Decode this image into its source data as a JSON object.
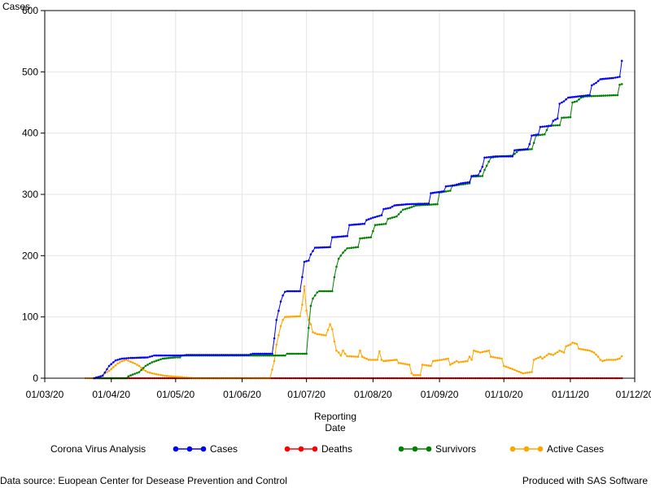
{
  "chart_data": {
    "type": "line",
    "title": "",
    "ylabel": "Cases",
    "xlabel_lines": [
      "Reporting",
      "Date"
    ],
    "ylim": [
      0,
      600
    ],
    "yticks": [
      0,
      100,
      200,
      300,
      400,
      500,
      600
    ],
    "xlim": [
      "2020-03-01",
      "2020-12-01"
    ],
    "xticks": [
      {
        "date": "2020-03-01",
        "label": "01/03/20"
      },
      {
        "date": "2020-04-01",
        "label": "01/04/20"
      },
      {
        "date": "2020-05-01",
        "label": "01/05/20"
      },
      {
        "date": "2020-06-01",
        "label": "01/06/20"
      },
      {
        "date": "2020-07-01",
        "label": "01/07/20"
      },
      {
        "date": "2020-08-01",
        "label": "01/08/20"
      },
      {
        "date": "2020-09-01",
        "label": "01/09/20"
      },
      {
        "date": "2020-10-01",
        "label": "01/10/20"
      },
      {
        "date": "2020-11-01",
        "label": "01/11/20"
      },
      {
        "date": "2020-12-01",
        "label": "01/12/20"
      }
    ],
    "grid": true,
    "legend_placement": "bottom",
    "legend_title": "Corona Virus Analysis",
    "series": [
      {
        "name": "Cases",
        "color": "#0000ff",
        "points": [
          [
            "2020-03-24",
            0
          ],
          [
            "2020-03-28",
            4
          ],
          [
            "2020-03-31",
            20
          ],
          [
            "2020-04-03",
            29
          ],
          [
            "2020-04-06",
            32
          ],
          [
            "2020-04-10",
            33
          ],
          [
            "2020-04-18",
            34
          ],
          [
            "2020-04-21",
            37
          ],
          [
            "2020-05-04",
            37
          ],
          [
            "2020-05-06",
            38
          ],
          [
            "2020-06-04",
            38
          ],
          [
            "2020-06-06",
            40
          ],
          [
            "2020-06-15",
            40
          ],
          [
            "2020-06-16",
            65
          ],
          [
            "2020-06-17",
            95
          ],
          [
            "2020-06-18",
            110
          ],
          [
            "2020-06-19",
            125
          ],
          [
            "2020-06-20",
            135
          ],
          [
            "2020-06-21",
            141
          ],
          [
            "2020-06-22",
            142
          ],
          [
            "2020-06-28",
            142
          ],
          [
            "2020-06-29",
            165
          ],
          [
            "2020-06-30",
            190
          ],
          [
            "2020-07-02",
            192
          ],
          [
            "2020-07-03",
            202
          ],
          [
            "2020-07-05",
            213
          ],
          [
            "2020-07-12",
            214
          ],
          [
            "2020-07-13",
            230
          ],
          [
            "2020-07-20",
            232
          ],
          [
            "2020-07-21",
            250
          ],
          [
            "2020-07-28",
            252
          ],
          [
            "2020-07-29",
            258
          ],
          [
            "2020-08-01",
            262
          ],
          [
            "2020-08-05",
            266
          ],
          [
            "2020-08-06",
            276
          ],
          [
            "2020-08-09",
            278
          ],
          [
            "2020-08-11",
            282
          ],
          [
            "2020-08-17",
            284
          ],
          [
            "2020-08-27",
            285
          ],
          [
            "2020-08-28",
            302
          ],
          [
            "2020-09-03",
            305
          ],
          [
            "2020-09-04",
            313
          ],
          [
            "2020-09-08",
            315
          ],
          [
            "2020-09-11",
            318
          ],
          [
            "2020-09-15",
            320
          ],
          [
            "2020-09-16",
            330
          ],
          [
            "2020-09-19",
            331
          ],
          [
            "2020-09-21",
            345
          ],
          [
            "2020-09-22",
            360
          ],
          [
            "2020-09-27",
            362
          ],
          [
            "2020-10-05",
            362
          ],
          [
            "2020-10-06",
            372
          ],
          [
            "2020-10-12",
            374
          ],
          [
            "2020-10-13",
            382
          ],
          [
            "2020-10-14",
            396
          ],
          [
            "2020-10-17",
            398
          ],
          [
            "2020-10-18",
            410
          ],
          [
            "2020-10-23",
            412
          ],
          [
            "2020-10-24",
            420
          ],
          [
            "2020-10-26",
            424
          ],
          [
            "2020-10-27",
            448
          ],
          [
            "2020-10-29",
            452
          ],
          [
            "2020-10-31",
            458
          ],
          [
            "2020-11-10",
            462
          ],
          [
            "2020-11-11",
            478
          ],
          [
            "2020-11-13",
            482
          ],
          [
            "2020-11-15",
            488
          ],
          [
            "2020-11-21",
            490
          ],
          [
            "2020-11-24",
            492
          ],
          [
            "2020-11-25",
            518
          ]
        ]
      },
      {
        "name": "Deaths",
        "color": "#ff0000",
        "points": [
          [
            "2020-03-24",
            0
          ],
          [
            "2020-11-25",
            0
          ]
        ]
      },
      {
        "name": "Survivors",
        "color": "#008000",
        "points": [
          [
            "2020-03-24",
            0
          ],
          [
            "2020-04-08",
            0
          ],
          [
            "2020-04-09",
            3
          ],
          [
            "2020-04-11",
            6
          ],
          [
            "2020-04-14",
            10
          ],
          [
            "2020-04-17",
            20
          ],
          [
            "2020-04-20",
            26
          ],
          [
            "2020-04-25",
            32
          ],
          [
            "2020-05-01",
            34
          ],
          [
            "2020-05-03",
            34
          ],
          [
            "2020-05-04",
            37
          ],
          [
            "2020-06-21",
            37
          ],
          [
            "2020-06-22",
            40
          ],
          [
            "2020-07-01",
            40
          ],
          [
            "2020-07-02",
            82
          ],
          [
            "2020-07-03",
            118
          ],
          [
            "2020-07-04",
            130
          ],
          [
            "2020-07-06",
            140
          ],
          [
            "2020-07-07",
            142
          ],
          [
            "2020-07-13",
            142
          ],
          [
            "2020-07-14",
            165
          ],
          [
            "2020-07-15",
            182
          ],
          [
            "2020-07-16",
            195
          ],
          [
            "2020-07-18",
            205
          ],
          [
            "2020-07-20",
            212
          ],
          [
            "2020-07-25",
            214
          ],
          [
            "2020-07-26",
            228
          ],
          [
            "2020-07-31",
            230
          ],
          [
            "2020-08-02",
            250
          ],
          [
            "2020-08-07",
            252
          ],
          [
            "2020-08-08",
            260
          ],
          [
            "2020-08-12",
            264
          ],
          [
            "2020-08-15",
            275
          ],
          [
            "2020-08-18",
            278
          ],
          [
            "2020-08-21",
            282
          ],
          [
            "2020-08-31",
            284
          ],
          [
            "2020-09-01",
            303
          ],
          [
            "2020-09-06",
            306
          ],
          [
            "2020-09-07",
            314
          ],
          [
            "2020-09-11",
            316
          ],
          [
            "2020-09-15",
            318
          ],
          [
            "2020-09-16",
            329
          ],
          [
            "2020-09-21",
            330
          ],
          [
            "2020-09-22",
            340
          ],
          [
            "2020-09-25",
            360
          ],
          [
            "2020-09-29",
            362
          ],
          [
            "2020-10-05",
            363
          ],
          [
            "2020-10-08",
            372
          ],
          [
            "2020-10-14",
            374
          ],
          [
            "2020-10-15",
            384
          ],
          [
            "2020-10-16",
            396
          ],
          [
            "2020-10-20",
            398
          ],
          [
            "2020-10-21",
            405
          ],
          [
            "2020-10-22",
            412
          ],
          [
            "2020-10-27",
            413
          ],
          [
            "2020-10-28",
            425
          ],
          [
            "2020-11-01",
            426
          ],
          [
            "2020-11-02",
            450
          ],
          [
            "2020-11-04",
            452
          ],
          [
            "2020-11-06",
            458
          ],
          [
            "2020-11-08",
            460
          ],
          [
            "2020-11-23",
            462
          ],
          [
            "2020-11-24",
            479
          ],
          [
            "2020-11-25",
            480
          ]
        ]
      },
      {
        "name": "Active Cases",
        "color": "#ffa500",
        "points": [
          [
            "2020-03-20",
            0
          ],
          [
            "2020-03-24",
            0
          ],
          [
            "2020-03-27",
            3
          ],
          [
            "2020-03-29",
            8
          ],
          [
            "2020-03-31",
            12
          ],
          [
            "2020-04-02",
            18
          ],
          [
            "2020-04-04",
            24
          ],
          [
            "2020-04-06",
            28
          ],
          [
            "2020-04-08",
            30
          ],
          [
            "2020-04-10",
            27
          ],
          [
            "2020-04-12",
            24
          ],
          [
            "2020-04-14",
            20
          ],
          [
            "2020-04-16",
            14
          ],
          [
            "2020-04-18",
            10
          ],
          [
            "2020-04-20",
            8
          ],
          [
            "2020-04-23",
            6
          ],
          [
            "2020-04-26",
            4
          ],
          [
            "2020-04-29",
            3
          ],
          [
            "2020-05-03",
            2
          ],
          [
            "2020-05-06",
            1
          ],
          [
            "2020-05-10",
            0
          ],
          [
            "2020-06-14",
            0
          ],
          [
            "2020-06-16",
            28
          ],
          [
            "2020-06-17",
            55
          ],
          [
            "2020-06-18",
            70
          ],
          [
            "2020-06-19",
            85
          ],
          [
            "2020-06-20",
            95
          ],
          [
            "2020-06-21",
            100
          ],
          [
            "2020-06-28",
            101
          ],
          [
            "2020-06-29",
            120
          ],
          [
            "2020-06-30",
            150
          ],
          [
            "2020-07-01",
            110
          ],
          [
            "2020-07-02",
            95
          ],
          [
            "2020-07-03",
            88
          ],
          [
            "2020-07-04",
            75
          ],
          [
            "2020-07-06",
            72
          ],
          [
            "2020-07-10",
            70
          ],
          [
            "2020-07-12",
            88
          ],
          [
            "2020-07-13",
            80
          ],
          [
            "2020-07-14",
            60
          ],
          [
            "2020-07-15",
            45
          ],
          [
            "2020-07-16",
            42
          ],
          [
            "2020-07-17",
            37
          ],
          [
            "2020-07-18",
            45
          ],
          [
            "2020-07-19",
            40
          ],
          [
            "2020-07-20",
            36
          ],
          [
            "2020-07-25",
            35
          ],
          [
            "2020-07-26",
            45
          ],
          [
            "2020-07-27",
            35
          ],
          [
            "2020-07-30",
            30
          ],
          [
            "2020-08-03",
            30
          ],
          [
            "2020-08-04",
            44
          ],
          [
            "2020-08-05",
            30
          ],
          [
            "2020-08-06",
            28
          ],
          [
            "2020-08-12",
            30
          ],
          [
            "2020-08-13",
            25
          ],
          [
            "2020-08-18",
            22
          ],
          [
            "2020-08-19",
            8
          ],
          [
            "2020-08-20",
            5
          ],
          [
            "2020-08-23",
            5
          ],
          [
            "2020-08-24",
            22
          ],
          [
            "2020-08-28",
            20
          ],
          [
            "2020-08-29",
            28
          ],
          [
            "2020-09-02",
            30
          ],
          [
            "2020-09-05",
            32
          ],
          [
            "2020-09-06",
            22
          ],
          [
            "2020-09-09",
            28
          ],
          [
            "2020-09-10",
            26
          ],
          [
            "2020-09-14",
            28
          ],
          [
            "2020-09-15",
            35
          ],
          [
            "2020-09-16",
            30
          ],
          [
            "2020-09-17",
            45
          ],
          [
            "2020-09-20",
            42
          ],
          [
            "2020-09-24",
            45
          ],
          [
            "2020-09-25",
            35
          ],
          [
            "2020-09-30",
            32
          ],
          [
            "2020-10-01",
            20
          ],
          [
            "2020-10-05",
            15
          ],
          [
            "2020-10-07",
            12
          ],
          [
            "2020-10-10",
            8
          ],
          [
            "2020-10-14",
            10
          ],
          [
            "2020-10-15",
            30
          ],
          [
            "2020-10-18",
            35
          ],
          [
            "2020-10-19",
            32
          ],
          [
            "2020-10-22",
            40
          ],
          [
            "2020-10-24",
            38
          ],
          [
            "2020-10-27",
            45
          ],
          [
            "2020-10-29",
            42
          ],
          [
            "2020-10-30",
            52
          ],
          [
            "2020-11-01",
            55
          ],
          [
            "2020-11-02",
            58
          ],
          [
            "2020-11-04",
            56
          ],
          [
            "2020-11-05",
            48
          ],
          [
            "2020-11-10",
            45
          ],
          [
            "2020-11-12",
            42
          ],
          [
            "2020-11-14",
            35
          ],
          [
            "2020-11-15",
            30
          ],
          [
            "2020-11-16",
            28
          ],
          [
            "2020-11-18",
            30
          ],
          [
            "2020-11-22",
            30
          ],
          [
            "2020-11-24",
            32
          ],
          [
            "2020-11-25",
            36
          ]
        ]
      }
    ]
  },
  "footer": {
    "source": "Data source: Euopean Center for Desease Prevention and Control",
    "produced": "Produced with SAS Software"
  }
}
